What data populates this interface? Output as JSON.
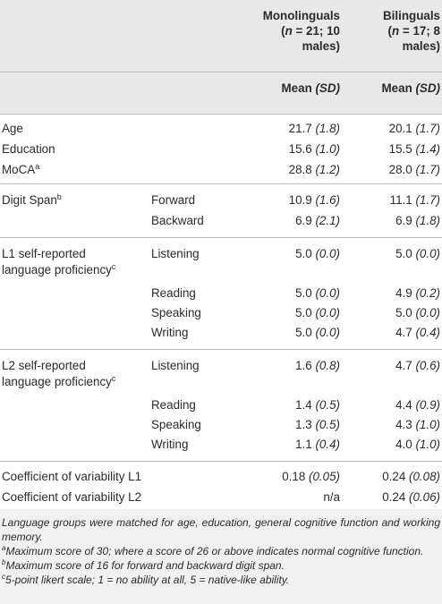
{
  "header": {
    "mono_label": "Monolinguals",
    "mono_sub1": "(",
    "mono_n": "n",
    "mono_sub1b": " = 21; 10",
    "mono_sub2": "males)",
    "bi_label": "Bilinguals",
    "bi_sub1": "(",
    "bi_n": "n",
    "bi_sub1b": " = 17; 8",
    "bi_sub2": "males)",
    "mean_label": "Mean ",
    "sd_label": "(SD)"
  },
  "rows": {
    "age": {
      "label": "Age",
      "mono": "21.7",
      "mono_sd": "(1.8)",
      "bi": "20.1",
      "bi_sd": "(1.7)"
    },
    "education": {
      "label": "Education",
      "mono": "15.6",
      "mono_sd": "(1.0)",
      "bi": "15.5",
      "bi_sd": "(1.4)"
    },
    "moca": {
      "label": "MoCA",
      "sup": "a",
      "mono": "28.8",
      "mono_sd": "(1.2)",
      "bi": "28.0",
      "bi_sd": "(1.7)"
    },
    "digit_forward": {
      "label": "Digit Span",
      "sup": "b",
      "sub": "Forward",
      "mono": "10.9",
      "mono_sd": "(1.6)",
      "bi": "11.1",
      "bi_sd": "(1.7)"
    },
    "digit_backward": {
      "sub": "Backward",
      "mono": "6.9",
      "mono_sd": "(2.1)",
      "bi": "6.9",
      "bi_sd": "(1.8)"
    },
    "l1_listening": {
      "label1": "L1 self-reported",
      "label2": "language proficiency",
      "sup": "c",
      "sub": "Listening",
      "mono": "5.0",
      "mono_sd": "(0.0)",
      "bi": "5.0",
      "bi_sd": "(0.0)"
    },
    "l1_reading": {
      "sub": "Reading",
      "mono": "5.0",
      "mono_sd": "(0.0)",
      "bi": "4.9",
      "bi_sd": "(0.2)"
    },
    "l1_speaking": {
      "sub": "Speaking",
      "mono": "5.0",
      "mono_sd": "(0.0)",
      "bi": "5.0",
      "bi_sd": "(0.0)"
    },
    "l1_writing": {
      "sub": "Writing",
      "mono": "5.0",
      "mono_sd": "(0.0)",
      "bi": "4.7",
      "bi_sd": "(0.4)"
    },
    "l2_listening": {
      "label1": "L2 self-reported",
      "label2": "language proficiency",
      "sup": "c",
      "sub": "Listening",
      "mono": "1.6",
      "mono_sd": "(0.8)",
      "bi": "4.7",
      "bi_sd": "(0.6)"
    },
    "l2_reading": {
      "sub": "Reading",
      "mono": "1.4",
      "mono_sd": "(0.5)",
      "bi": "4.4",
      "bi_sd": "(0.9)"
    },
    "l2_speaking": {
      "sub": "Speaking",
      "mono": "1.3",
      "mono_sd": "(0.5)",
      "bi": "4.3",
      "bi_sd": "(1.0)"
    },
    "l2_writing": {
      "sub": "Writing",
      "mono": "1.1",
      "mono_sd": "(0.4)",
      "bi": "4.0",
      "bi_sd": "(1.0)"
    },
    "cov_l1": {
      "label": "Coefficient of variability L1",
      "mono": "0.18",
      "mono_sd": "(0.05)",
      "bi": "0.24",
      "bi_sd": "(0.08)"
    },
    "cov_l2": {
      "label": "Coefficient of variability L2",
      "mono": "n/a",
      "bi": "0.24",
      "bi_sd": "(0.06)"
    }
  },
  "notes": {
    "main": "Language groups were matched for age, education, general cognitive function and working memory.",
    "a_mark": "a",
    "a": "Maximum score of 30; where a score of 26 or above indicates normal cognitive function.",
    "b_mark": "b",
    "b": "Maximum score of 16 for forward and backward digit span.",
    "c_mark": "c",
    "c": "5-point likert scale; 1 = no ability at all, 5 = native-like ability."
  }
}
